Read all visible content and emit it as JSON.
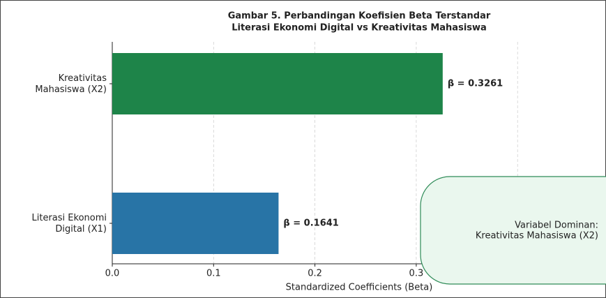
{
  "chart_data": {
    "type": "barh",
    "title": "Gambar 5. Perbandingan Koefisien Beta Terstandar\nLiterasi Ekonomi Digital vs Kreativitas Mahasiswa",
    "categories": [
      "Literasi Ekonomi\nDigital (X1)",
      "Kreativitas\nMahasiswa (X2)"
    ],
    "values": [
      0.1641,
      0.3261
    ],
    "value_labels": [
      "β = 0.1641",
      "β = 0.3261"
    ],
    "colors": [
      "#2874a6",
      "#1e8449"
    ],
    "xlabel": "Standardized Coefficients (Beta)",
    "xlim": [
      0,
      0.49
    ],
    "xticks": [
      {
        "value": 0,
        "label": "0.0"
      },
      0.1,
      0.2,
      0.3,
      0.4
    ],
    "grid": true,
    "annotation": "Variabel Dominan:\nKreativitas Mahasiswa (X2)"
  }
}
